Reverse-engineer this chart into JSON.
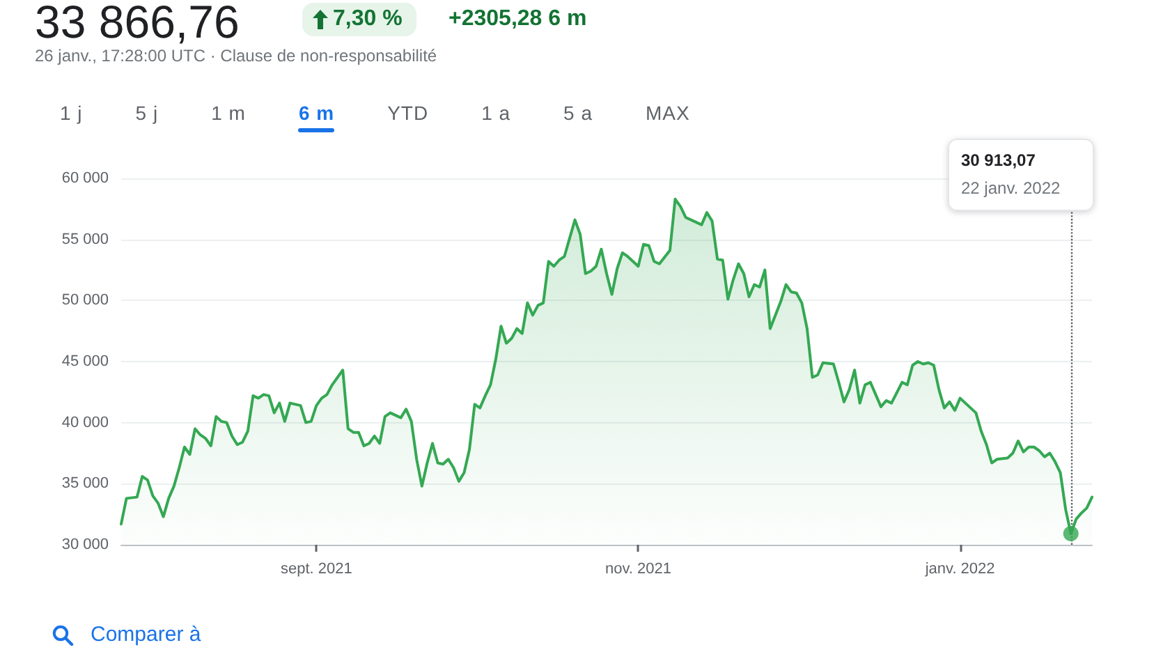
{
  "chart_data": {
    "type": "area",
    "title": "33 866,76",
    "subtitle": "26 janv., 17:28:00 UTC · Clause de non-responsabilité",
    "annotations": [
      "30 913,07",
      "22 janv. 2022",
      "7,30 %",
      "+2305,28 6 m",
      "1 j",
      "5 j",
      "1 m",
      "6 m",
      "YTD",
      "1 a",
      "5 a",
      "MAX",
      "Comparer à"
    ],
    "x": [
      "2021-07-26",
      "2021-07-27",
      "2021-07-29",
      "2021-07-30",
      "2021-07-31",
      "2021-08-01",
      "2021-08-02",
      "2021-08-03",
      "2021-08-04",
      "2021-08-05",
      "2021-08-06",
      "2021-08-07",
      "2021-08-08",
      "2021-08-09",
      "2021-08-10",
      "2021-08-11",
      "2021-08-12",
      "2021-08-13",
      "2021-08-14",
      "2021-08-15",
      "2021-08-16",
      "2021-08-17",
      "2021-08-18",
      "2021-08-19",
      "2021-08-20",
      "2021-08-21",
      "2021-08-22",
      "2021-08-23",
      "2021-08-24",
      "2021-08-25",
      "2021-08-26",
      "2021-08-27",
      "2021-08-28",
      "2021-08-29",
      "2021-08-30",
      "2021-08-31",
      "2021-09-01",
      "2021-09-02",
      "2021-09-03",
      "2021-09-04",
      "2021-09-06",
      "2021-09-07",
      "2021-09-08",
      "2021-09-09",
      "2021-09-10",
      "2021-09-11",
      "2021-09-12",
      "2021-09-13",
      "2021-09-14",
      "2021-09-15",
      "2021-09-16",
      "2021-09-17",
      "2021-09-18",
      "2021-09-19",
      "2021-09-20",
      "2021-09-21",
      "2021-09-22",
      "2021-09-23",
      "2021-09-24",
      "2021-09-25",
      "2021-09-26",
      "2021-09-27",
      "2021-09-28",
      "2021-09-29",
      "2021-09-30",
      "2021-10-01",
      "2021-10-02",
      "2021-10-03",
      "2021-10-04",
      "2021-10-05",
      "2021-10-06",
      "2021-10-07",
      "2021-10-08",
      "2021-10-09",
      "2021-10-10",
      "2021-10-11",
      "2021-10-12",
      "2021-10-13",
      "2021-10-14",
      "2021-10-15",
      "2021-10-16",
      "2021-10-17",
      "2021-10-18",
      "2021-10-19",
      "2021-10-20",
      "2021-10-21",
      "2021-10-22",
      "2021-10-23",
      "2021-10-24",
      "2021-10-25",
      "2021-10-26",
      "2021-10-27",
      "2021-10-28",
      "2021-10-29",
      "2021-10-30",
      "2021-11-01",
      "2021-11-02",
      "2021-11-03",
      "2021-11-04",
      "2021-11-05",
      "2021-11-07",
      "2021-11-08",
      "2021-11-09",
      "2021-11-10",
      "2021-11-12",
      "2021-11-13",
      "2021-11-14",
      "2021-11-15",
      "2021-11-16",
      "2021-11-17",
      "2021-11-18",
      "2021-11-19",
      "2021-11-20",
      "2021-11-21",
      "2021-11-22",
      "2021-11-23",
      "2021-11-24",
      "2021-11-25",
      "2021-11-26",
      "2021-11-28",
      "2021-11-29",
      "2021-11-30",
      "2021-12-01",
      "2021-12-02",
      "2021-12-03",
      "2021-12-04",
      "2021-12-05",
      "2021-12-06",
      "2021-12-08",
      "2021-12-09",
      "2021-12-10",
      "2021-12-11",
      "2021-12-12",
      "2021-12-13",
      "2021-12-14",
      "2021-12-15",
      "2021-12-16",
      "2021-12-17",
      "2021-12-18",
      "2021-12-19",
      "2021-12-21",
      "2021-12-22",
      "2021-12-23",
      "2021-12-24",
      "2021-12-25",
      "2021-12-26",
      "2021-12-27",
      "2021-12-28",
      "2021-12-29",
      "2021-12-30",
      "2021-12-31",
      "2022-01-01",
      "2022-01-02",
      "2022-01-04",
      "2022-01-05",
      "2022-01-06",
      "2022-01-07",
      "2022-01-08",
      "2022-01-10",
      "2022-01-11",
      "2022-01-12",
      "2022-01-13",
      "2022-01-14",
      "2022-01-15",
      "2022-01-16",
      "2022-01-17",
      "2022-01-18",
      "2022-01-19",
      "2022-01-20",
      "2022-01-21",
      "2022-01-22",
      "2022-01-23",
      "2022-01-24",
      "2022-01-25",
      "2022-01-26"
    ],
    "series": [
      {
        "color": "#34a853",
        "values": [
          31700,
          33800,
          33900,
          35600,
          35300,
          34000,
          33400,
          32300,
          33800,
          34800,
          36300,
          38000,
          37400,
          39500,
          39000,
          38700,
          38100,
          40500,
          40100,
          40000,
          38900,
          38200,
          38400,
          39300,
          42200,
          42000,
          42300,
          42200,
          40800,
          41600,
          40100,
          41600,
          41500,
          41400,
          40000,
          40100,
          41400,
          42000,
          42300,
          43100,
          44300,
          39500,
          39200,
          39200,
          38100,
          38300,
          38900,
          38300,
          40500,
          40800,
          40600,
          40400,
          41100,
          40100,
          37000,
          34800,
          36700,
          38300,
          36700,
          36600,
          37000,
          36300,
          35200,
          35900,
          37800,
          41500,
          41200,
          42200,
          43100,
          45200,
          47900,
          46500,
          46900,
          47700,
          47300,
          49800,
          48800,
          49600,
          49800,
          53200,
          52800,
          53300,
          53600,
          55100,
          56600,
          55400,
          52200,
          52400,
          52800,
          54200,
          52200,
          50500,
          52600,
          53900,
          53600,
          52800,
          54600,
          54500,
          53200,
          53000,
          54100,
          58300,
          57700,
          56800,
          56400,
          56200,
          57200,
          56500,
          53400,
          53300,
          50100,
          51700,
          53000,
          52200,
          50300,
          51300,
          51100,
          52500,
          47700,
          49900,
          51300,
          50700,
          50600,
          49800,
          47700,
          43700,
          43900,
          44900,
          44800,
          43300,
          41700,
          42700,
          44300,
          41600,
          43100,
          43300,
          42300,
          41300,
          41800,
          41600,
          43300,
          43100,
          44700,
          45000,
          44800,
          44900,
          44700,
          42700,
          41200,
          41700,
          41000,
          42000,
          41600,
          40800,
          39300,
          38200,
          36700,
          37000,
          37100,
          37500,
          38500,
          37600,
          38000,
          38000,
          37700,
          37200,
          37500,
          36800,
          35900,
          32900,
          30913.07,
          32100,
          32600,
          33000,
          33900
        ]
      },
      {
        "type": "scatter",
        "color": "#34a853",
        "marker": "circle",
        "x": [
          "2022-01-22"
        ],
        "values": [
          30913.07
        ]
      }
    ],
    "ref_lines": [
      {
        "axis": "x",
        "value": "2022-01-22",
        "color": "#5f6368",
        "line_style": "dotted"
      }
    ],
    "xlim": [
      "2021-07-26",
      "2022-01-26"
    ],
    "xticks": [
      {
        "value": "2021-09-01",
        "label": "sept. 2021"
      },
      {
        "value": "2021-11-01",
        "label": "nov. 2021"
      },
      {
        "value": "2022-01-01",
        "label": "janv. 2022"
      }
    ],
    "ylim": [
      30000,
      60000
    ],
    "yticks": [
      {
        "value": 30000,
        "label": "30 000"
      },
      {
        "value": 35000,
        "label": "35 000"
      },
      {
        "value": 40000,
        "label": "40 000"
      },
      {
        "value": 45000,
        "label": "45 000"
      },
      {
        "value": 50000,
        "label": "50 000"
      },
      {
        "value": 55000,
        "label": "55 000"
      },
      {
        "value": 60000,
        "label": "60 000"
      }
    ],
    "grid": "y"
  }
}
